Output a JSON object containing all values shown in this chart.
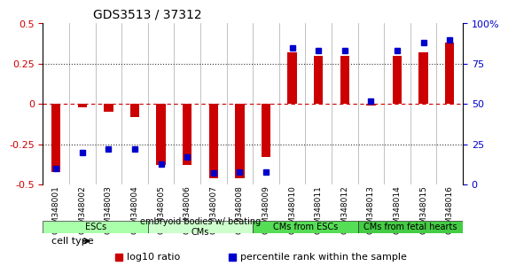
{
  "title": "GDS3513 / 37312",
  "samples": [
    "GSM348001",
    "GSM348002",
    "GSM348003",
    "GSM348004",
    "GSM348005",
    "GSM348006",
    "GSM348007",
    "GSM348008",
    "GSM348009",
    "GSM348010",
    "GSM348011",
    "GSM348012",
    "GSM348013",
    "GSM348014",
    "GSM348015",
    "GSM348016"
  ],
  "log10_ratio": [
    -0.42,
    -0.02,
    -0.05,
    -0.08,
    -0.38,
    -0.38,
    -0.46,
    -0.46,
    -0.33,
    0.32,
    0.3,
    0.3,
    -0.01,
    0.3,
    0.32,
    0.38
  ],
  "percentile_rank": [
    10,
    20,
    22,
    22,
    13,
    17,
    7,
    8,
    8,
    85,
    83,
    83,
    52,
    83,
    88,
    90
  ],
  "cell_types": [
    {
      "label": "ESCs",
      "start": 0,
      "end": 4,
      "color": "#aaffaa"
    },
    {
      "label": "embryoid bodies w/ beating\nCMs",
      "start": 4,
      "end": 8,
      "color": "#ccffcc"
    },
    {
      "label": "CMs from ESCs",
      "start": 8,
      "end": 12,
      "color": "#55dd55"
    },
    {
      "label": "CMs from fetal hearts",
      "start": 12,
      "end": 16,
      "color": "#44cc44"
    }
  ],
  "ylim_left": [
    -0.5,
    0.5
  ],
  "ylim_right": [
    0,
    100
  ],
  "yticks_left": [
    -0.5,
    -0.25,
    0,
    0.25,
    0.5
  ],
  "yticks_right": [
    0,
    25,
    50,
    75,
    100
  ],
  "ytick_labels_right": [
    "0",
    "25",
    "50",
    "75",
    "100%"
  ],
  "bar_color_red": "#cc0000",
  "bar_color_blue": "#0000cc",
  "hline_color": "#cc0000",
  "dotted_color": "#333333",
  "background_color": "#ffffff"
}
